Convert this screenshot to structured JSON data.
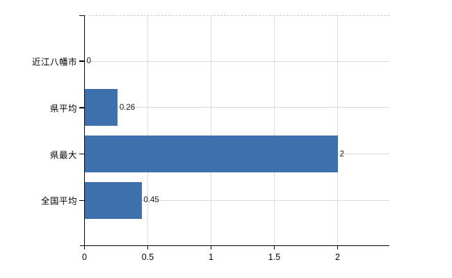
{
  "chart_data": {
    "type": "bar",
    "orientation": "horizontal",
    "title": "",
    "xlabel": "",
    "ylabel": "",
    "categories": [
      "近江八幡市",
      "県平均",
      "県最大",
      "全国平均"
    ],
    "values": [
      0,
      0.26,
      2,
      0.45
    ],
    "data_labels": [
      "0",
      "0.26",
      "2",
      "0.45"
    ],
    "x_ticks": [
      {
        "value": 0,
        "label": "0"
      },
      {
        "value": 0.5,
        "label": "0.5"
      },
      {
        "value": 1,
        "label": "1"
      },
      {
        "value": 1.5,
        "label": "1.5"
      },
      {
        "value": 2,
        "label": "2"
      }
    ],
    "xlim": [
      0,
      2.41
    ],
    "grid": true,
    "legend": false,
    "colors": {
      "bar": "#3f70ae",
      "horizontal_gridline": "#d6dcd3",
      "vertical_gridline": "#dcdcdc",
      "plot_top_border": "#c9c9c9",
      "axis_line": "#000000",
      "label_text": "#000000",
      "value_text": "#1a1a1a",
      "background": "#ffffff"
    }
  }
}
